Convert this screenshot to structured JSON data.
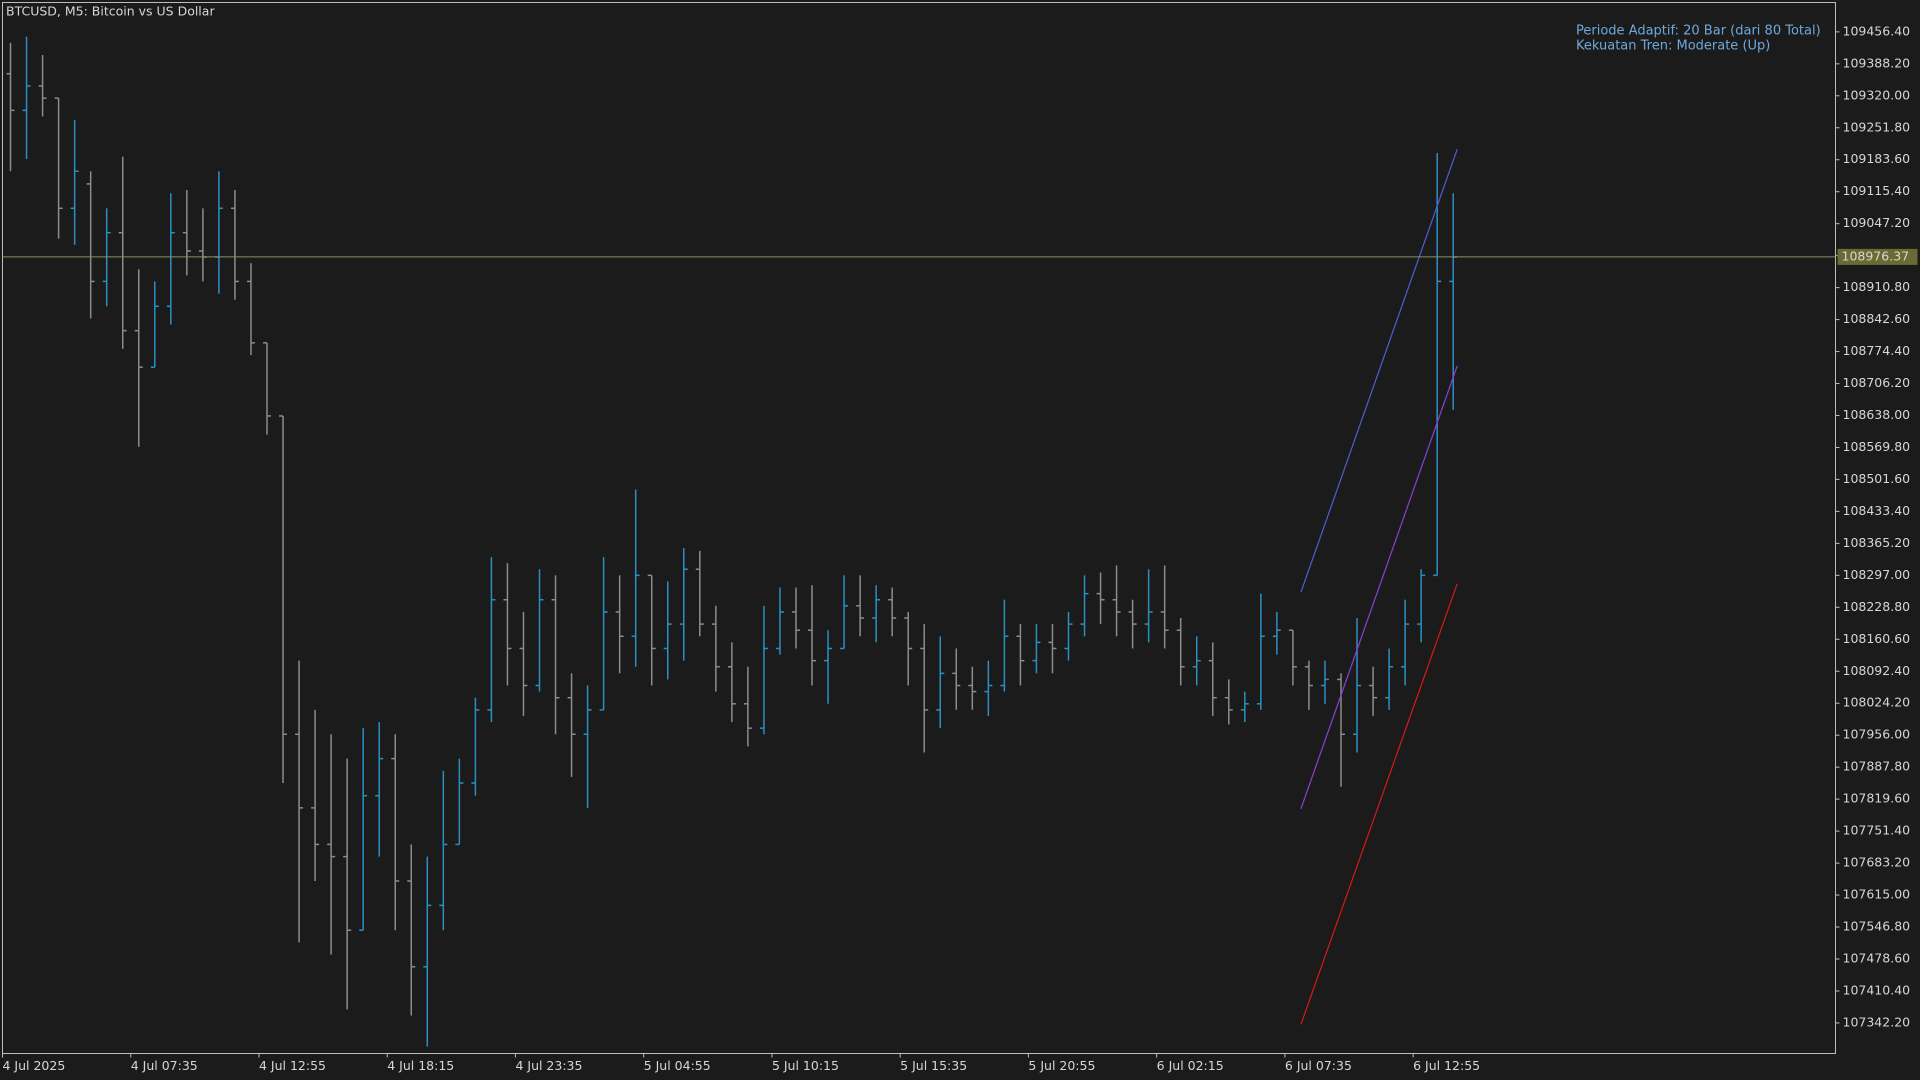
{
  "chart_data": {
    "type": "ohlc",
    "title": "BTCUSD, M5:  Bitcoin vs US Dollar",
    "annotations": [
      "Periode Adaptif: 20 Bar (dari 80 Total)",
      "Kekuatan Tren: Moderate (Up)"
    ],
    "categories": [
      "4 Jul 2025",
      null,
      null,
      null,
      null,
      null,
      null,
      null,
      "4 Jul 07:35",
      null,
      null,
      null,
      null,
      null,
      null,
      null,
      "4 Jul 12:55",
      null,
      null,
      null,
      null,
      null,
      null,
      null,
      "4 Jul 18:15",
      null,
      null,
      null,
      null,
      null,
      null,
      null,
      "4 Jul 23:35",
      null,
      null,
      null,
      null,
      null,
      null,
      null,
      "5 Jul 04:55",
      null,
      null,
      null,
      null,
      null,
      null,
      null,
      "5 Jul 10:15",
      null,
      null,
      null,
      null,
      null,
      null,
      null,
      "5 Jul 15:35",
      null,
      null,
      null,
      null,
      null,
      null,
      null,
      "5 Jul 20:55",
      null,
      null,
      null,
      null,
      null,
      null,
      null,
      "6 Jul 02:15",
      null,
      null,
      null,
      null,
      null,
      null,
      null,
      "6 Jul 07:35",
      null,
      null,
      null,
      null,
      null,
      null,
      null,
      "6 Jul 12:55",
      null,
      null
    ],
    "open": [
      109367,
      109289,
      109341,
      109315,
      109080,
      109132,
      108924,
      109028,
      108819,
      108741,
      108871,
      109028,
      108989,
      108976,
      109080,
      108924,
      108793,
      108637,
      107958,
      107801,
      107723,
      107697,
      107540,
      107827,
      107906,
      107645,
      107462,
      107593,
      107723,
      107854,
      108010,
      108245,
      108141,
      108062,
      108245,
      108036,
      107958,
      108010,
      108219,
      108167,
      108297,
      108141,
      108193,
      108310,
      108193,
      108102,
      108023,
      107971,
      108141,
      108219,
      108180,
      108115,
      108141,
      108232,
      108206,
      108245,
      108206,
      108141,
      108010,
      108088,
      108062,
      108049,
      108062,
      108167,
      108115,
      108154,
      108141,
      108193,
      108258,
      108245,
      108219,
      108193,
      108219,
      108180,
      108102,
      108115,
      108036,
      108010,
      108023,
      108167,
      108180,
      108102,
      108062,
      108075,
      107958,
      108062,
      108036,
      108102,
      108193,
      108297,
      108924
    ],
    "high": [
      109433,
      109446,
      109407,
      109315,
      109268,
      109159,
      109080,
      109190,
      108950,
      108924,
      109112,
      109119,
      109080,
      109159,
      109119,
      108963,
      108793,
      108637,
      108115,
      108010,
      107958,
      107906,
      107971,
      107984,
      107958,
      107723,
      107697,
      107880,
      107906,
      108036,
      108336,
      108323,
      108219,
      108310,
      108297,
      108088,
      108062,
      108336,
      108297,
      108480,
      108297,
      108284,
      108355,
      108349,
      108232,
      108154,
      108102,
      108232,
      108271,
      108271,
      108276,
      108180,
      108297,
      108297,
      108276,
      108271,
      108219,
      108193,
      108167,
      108141,
      108102,
      108115,
      108245,
      108193,
      108193,
      108193,
      108219,
      108297,
      108303,
      108318,
      108245,
      108310,
      108318,
      108206,
      108167,
      108154,
      108075,
      108049,
      108258,
      108219,
      108180,
      108115,
      108115,
      108088,
      108206,
      108102,
      108141,
      108245,
      108310,
      109198,
      109112
    ],
    "low": [
      109159,
      109185,
      109276,
      109015,
      109002,
      108845,
      108871,
      108780,
      108571,
      108741,
      108832,
      108937,
      108924,
      108898,
      108885,
      108767,
      108597,
      107854,
      107514,
      107645,
      107488,
      107371,
      107540,
      107697,
      107540,
      107358,
      107292,
      107540,
      107723,
      107827,
      107984,
      108062,
      107997,
      108049,
      107958,
      107867,
      107801,
      108010,
      108088,
      108102,
      108062,
      108075,
      108115,
      108167,
      108049,
      107984,
      107932,
      107958,
      108128,
      108141,
      108062,
      108023,
      108141,
      108167,
      108154,
      108167,
      108062,
      107919,
      107971,
      108010,
      108010,
      107997,
      108049,
      108062,
      108088,
      108088,
      108115,
      108167,
      108193,
      108167,
      108141,
      108154,
      108141,
      108062,
      108062,
      107997,
      107979,
      107984,
      108010,
      108128,
      108062,
      108010,
      108023,
      107846,
      107919,
      107997,
      108010,
      108062,
      108154,
      108297,
      108650
    ],
    "close": [
      109289,
      109341,
      109315,
      109080,
      109159,
      108924,
      109028,
      108819,
      108741,
      108871,
      109028,
      108989,
      108976,
      109080,
      108924,
      108793,
      108637,
      107958,
      107801,
      107723,
      107697,
      107540,
      107827,
      107906,
      107645,
      107462,
      107593,
      107723,
      107854,
      108010,
      108245,
      108141,
      108062,
      108245,
      108036,
      107958,
      108010,
      108219,
      108167,
      108297,
      108141,
      108193,
      108310,
      108193,
      108102,
      108023,
      107971,
      108141,
      108219,
      108180,
      108115,
      108141,
      108232,
      108206,
      108245,
      108206,
      108141,
      108010,
      108088,
      108062,
      108049,
      108062,
      108167,
      108115,
      108154,
      108141,
      108193,
      108258,
      108245,
      108219,
      108193,
      108219,
      108180,
      108102,
      108115,
      108036,
      108010,
      108023,
      108167,
      108180,
      108102,
      108062,
      108075,
      107958,
      108062,
      108036,
      108102,
      108193,
      108297,
      108924,
      108976
    ],
    "up_color": "#2b8fc4",
    "down_color": "#8c8c8c",
    "ylim": [
      107277,
      109519
    ],
    "yticks": [
      {
        "value": 107342.2,
        "label": "107342.20"
      },
      {
        "value": 107410.4,
        "label": "107410.40"
      },
      {
        "value": 107478.6,
        "label": "107478.60"
      },
      {
        "value": 107546.8,
        "label": "107546.80"
      },
      {
        "value": 107615,
        "label": "107615.00"
      },
      {
        "value": 107683.2,
        "label": "107683.20"
      },
      {
        "value": 107751.4,
        "label": "107751.40"
      },
      {
        "value": 107819.6,
        "label": "107819.60"
      },
      {
        "value": 107887.8,
        "label": "107887.80"
      },
      {
        "value": 107956,
        "label": "107956.00"
      },
      {
        "value": 108024.2,
        "label": "108024.20"
      },
      {
        "value": 108092.4,
        "label": "108092.40"
      },
      {
        "value": 108160.6,
        "label": "108160.60"
      },
      {
        "value": 108228.8,
        "label": "108228.80"
      },
      {
        "value": 108297,
        "label": "108297.00"
      },
      {
        "value": 108365.2,
        "label": "108365.20"
      },
      {
        "value": 108433.4,
        "label": "108433.40"
      },
      {
        "value": 108501.6,
        "label": "108501.60"
      },
      {
        "value": 108569.8,
        "label": "108569.80"
      },
      {
        "value": 108638,
        "label": "108638.00"
      },
      {
        "value": 108706.2,
        "label": "108706.20"
      },
      {
        "value": 108774.4,
        "label": "108774.40"
      },
      {
        "value": 108842.6,
        "label": "108842.60"
      },
      {
        "value": 108910.8,
        "label": "108910.80"
      },
      {
        "value": 108979,
        "label": "108979.00"
      },
      {
        "value": 109047.2,
        "label": "109047.20"
      },
      {
        "value": 109115.4,
        "label": "109115.40"
      },
      {
        "value": 109183.6,
        "label": "109183.60"
      },
      {
        "value": 109251.8,
        "label": "109251.80"
      },
      {
        "value": 109320,
        "label": "109320.00"
      },
      {
        "value": 109388.2,
        "label": "109388.20"
      },
      {
        "value": 109456.4,
        "label": "109456.40"
      }
    ],
    "current_price": 108976.37,
    "price_line_color": "#8f8f62",
    "channels": [
      {
        "color": "#4b5fd4",
        "x": [
          80.5,
          90.25
        ],
        "values": [
          108261,
          109206
        ]
      },
      {
        "color": "#8b3fd9",
        "x": [
          80.5,
          90.25
        ],
        "values": [
          107799,
          108744
        ]
      },
      {
        "color": "#d41a1a",
        "x": [
          80.5,
          90.25
        ],
        "values": [
          107339,
          108279
        ]
      }
    ]
  }
}
